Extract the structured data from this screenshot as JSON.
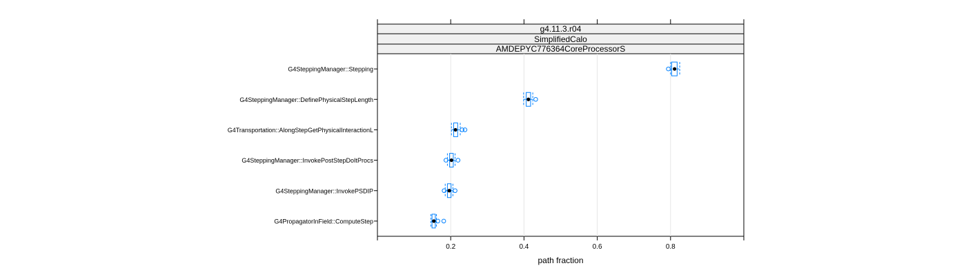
{
  "chart_data": {
    "type": "box",
    "strips": [
      "g4.11.3.r04",
      "SimplifiedCalo",
      "AMDEPYC776364CoreProcessorS"
    ],
    "xlabel": "path fraction",
    "xlim": [
      0.0,
      1.0
    ],
    "xticks": [
      0.2,
      0.4,
      0.6,
      0.8
    ],
    "xtick_labels": [
      "0.2",
      "0.4",
      "0.6",
      "0.8"
    ],
    "grid": true,
    "colors": {
      "box": "#0080ff",
      "median": "#000000",
      "strip_bg": "#f0f0f0",
      "grid": "#e6e6e6"
    },
    "categories": [
      "G4SteppingManager::Stepping",
      "G4SteppingManager::DefinePhysicalStepLength",
      "G4Transportation::AlongStepGetPhysicalInteractionL",
      "G4SteppingManager::InvokePostStepDoItProcs",
      "G4SteppingManager::InvokePSDIP",
      "G4PropagatorInField::ComputeStep"
    ],
    "boxes": [
      {
        "whisker_low": 0.8,
        "q1": 0.803,
        "median": 0.811,
        "q3": 0.818,
        "whisker_high": 0.825,
        "outliers": [
          0.794
        ]
      },
      {
        "whisker_low": 0.399,
        "q1": 0.406,
        "median": 0.412,
        "q3": 0.418,
        "whisker_high": 0.424,
        "outliers": [
          0.432
        ]
      },
      {
        "whisker_low": 0.202,
        "q1": 0.208,
        "median": 0.213,
        "q3": 0.219,
        "whisker_high": 0.226,
        "outliers": [
          0.231,
          0.239
        ]
      },
      {
        "whisker_low": 0.191,
        "q1": 0.197,
        "median": 0.202,
        "q3": 0.207,
        "whisker_high": 0.212,
        "outliers": [
          0.187,
          0.22
        ]
      },
      {
        "whisker_low": 0.185,
        "q1": 0.191,
        "median": 0.196,
        "q3": 0.201,
        "whisker_high": 0.206,
        "outliers": [
          0.182,
          0.212
        ]
      },
      {
        "whisker_low": 0.146,
        "q1": 0.149,
        "median": 0.154,
        "q3": 0.158,
        "whisker_high": 0.161,
        "outliers": [
          0.165,
          0.181
        ]
      }
    ]
  }
}
